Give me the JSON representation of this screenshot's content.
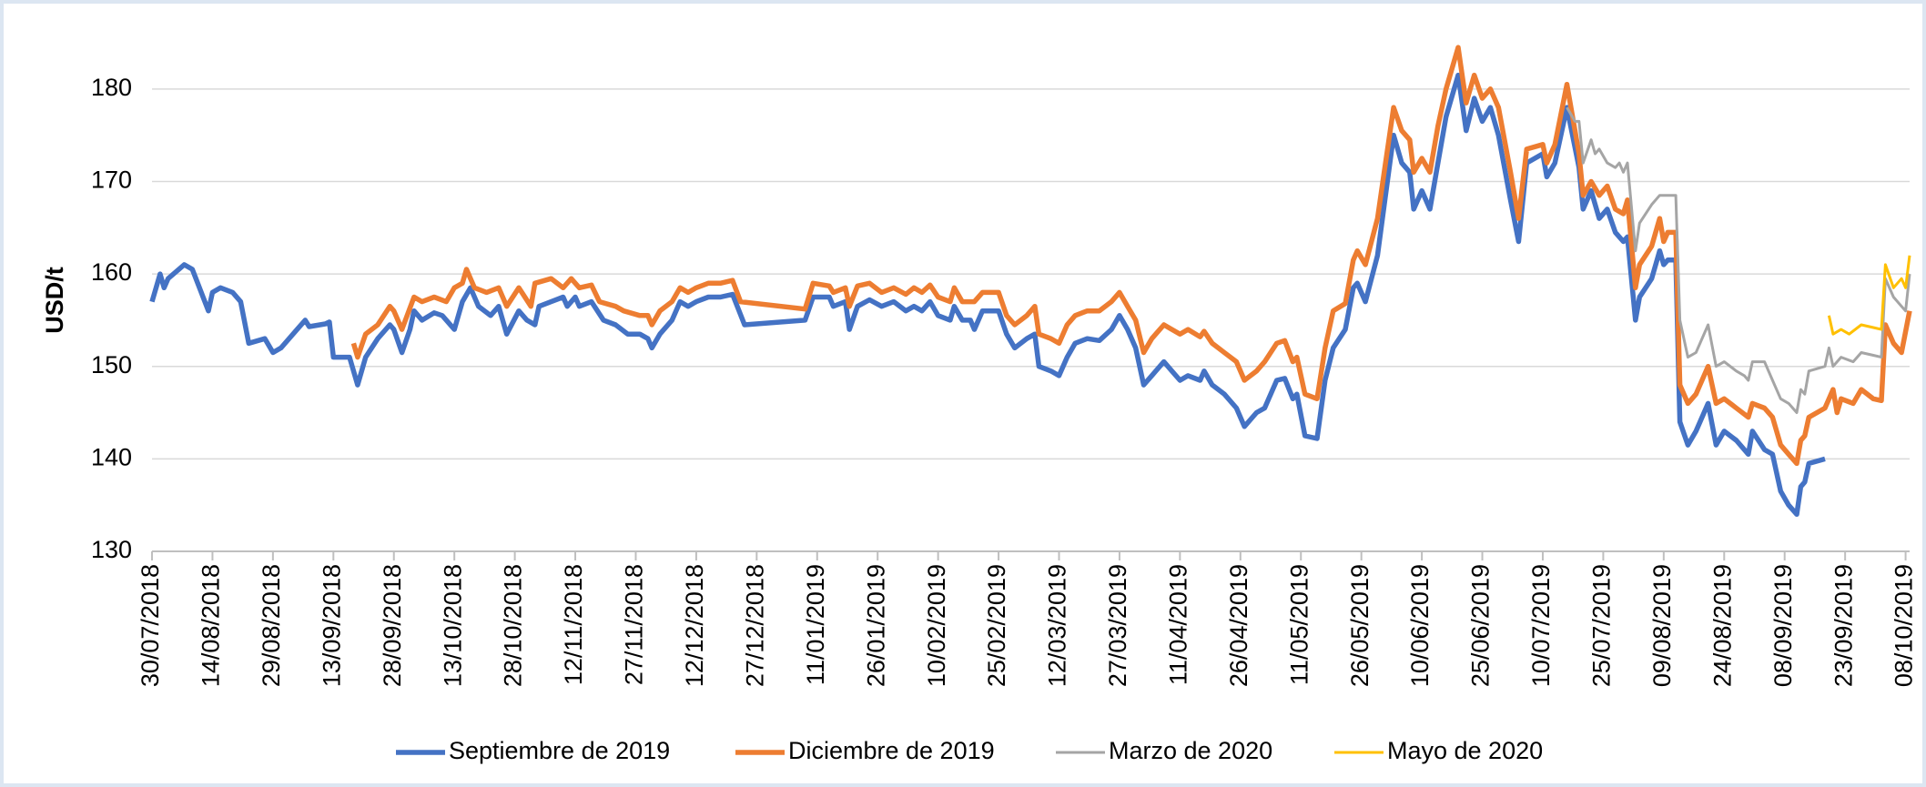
{
  "chart_data": {
    "type": "line",
    "y_label": "USD/t",
    "xlim": [
      "30/07/2018",
      "09/10/2019"
    ],
    "xticks": [
      "30/07/2018",
      "14/08/2018",
      "29/08/2018",
      "13/09/2018",
      "28/09/2018",
      "13/10/2018",
      "28/10/2018",
      "12/11/2018",
      "27/11/2018",
      "12/12/2018",
      "27/12/2018",
      "11/01/2019",
      "26/01/2019",
      "10/02/2019",
      "25/02/2019",
      "12/03/2019",
      "27/03/2019",
      "11/04/2019",
      "26/04/2019",
      "11/05/2019",
      "26/05/2019",
      "10/06/2019",
      "25/06/2019",
      "10/07/2019",
      "25/07/2019",
      "09/08/2019",
      "24/08/2019",
      "08/09/2019",
      "23/09/2019",
      "08/10/2019"
    ],
    "ylim": [
      130,
      185
    ],
    "yticks": [
      130,
      140,
      150,
      160,
      170,
      180
    ],
    "grid": true,
    "legend": "bottom",
    "series": [
      {
        "name": "Septiembre de 2019",
        "color": "#4472c4",
        "width": "thick",
        "x": [
          "30/07/2018",
          "01/08/2018",
          "02/08/2018",
          "03/08/2018",
          "07/08/2018",
          "09/08/2018",
          "13/08/2018",
          "14/08/2018",
          "16/08/2018",
          "19/08/2018",
          "21/08/2018",
          "23/08/2018",
          "27/08/2018",
          "29/08/2018",
          "31/08/2018",
          "04/09/2018",
          "06/09/2018",
          "07/09/2018",
          "11/09/2018",
          "12/09/2018",
          "13/09/2018",
          "17/09/2018",
          "19/09/2018",
          "21/09/2018",
          "24/09/2018",
          "27/09/2018",
          "28/09/2018",
          "30/09/2018",
          "02/10/2018",
          "03/10/2018",
          "05/10/2018",
          "08/10/2018",
          "10/10/2018",
          "13/10/2018",
          "15/10/2018",
          "17/10/2018",
          "19/10/2018",
          "22/10/2018",
          "24/10/2018",
          "26/10/2018",
          "29/10/2018",
          "31/10/2018",
          "02/11/2018",
          "03/11/2018",
          "06/11/2018",
          "09/11/2018",
          "10/11/2018",
          "12/11/2018",
          "13/11/2018",
          "16/11/2018",
          "19/11/2018",
          "22/11/2018",
          "25/11/2018",
          "28/11/2018",
          "30/11/2018",
          "01/12/2018",
          "03/12/2018",
          "06/12/2018",
          "08/12/2018",
          "10/12/2018",
          "12/12/2018",
          "15/12/2018",
          "18/12/2018",
          "21/12/2018",
          "24/12/2018",
          "08/01/2019",
          "10/01/2019",
          "14/01/2019",
          "15/01/2019",
          "18/01/2019",
          "19/01/2019",
          "21/01/2019",
          "24/01/2019",
          "27/01/2019",
          "30/01/2019",
          "02/02/2019",
          "04/02/2019",
          "06/02/2019",
          "08/02/2019",
          "10/02/2019",
          "13/02/2019",
          "14/02/2019",
          "16/02/2019",
          "18/02/2019",
          "19/02/2019",
          "21/02/2019",
          "25/02/2019",
          "27/02/2019",
          "01/03/2019",
          "04/03/2019",
          "06/03/2019",
          "07/03/2019",
          "10/03/2019",
          "12/03/2019",
          "14/03/2019",
          "16/03/2019",
          "19/03/2019",
          "22/03/2019",
          "25/03/2019",
          "27/03/2019",
          "29/03/2019",
          "31/03/2019",
          "02/04/2019",
          "04/04/2019",
          "07/04/2019",
          "09/04/2019",
          "11/04/2019",
          "13/04/2019",
          "16/04/2019",
          "17/04/2019",
          "19/04/2019",
          "22/04/2019",
          "25/04/2019",
          "27/04/2019",
          "30/04/2019",
          "02/05/2019",
          "05/05/2019",
          "07/05/2019",
          "09/05/2019",
          "10/05/2019",
          "12/05/2019",
          "15/05/2019",
          "17/05/2019",
          "19/05/2019",
          "22/05/2019",
          "24/05/2019",
          "25/05/2019",
          "27/05/2019",
          "30/05/2019",
          "01/06/2019",
          "03/06/2019",
          "05/06/2019",
          "07/06/2019",
          "08/06/2019",
          "10/06/2019",
          "12/06/2019",
          "14/06/2019",
          "16/06/2019",
          "19/06/2019",
          "21/06/2019",
          "23/06/2019",
          "25/06/2019",
          "27/06/2019",
          "29/06/2019",
          "02/07/2019",
          "04/07/2019",
          "06/07/2019",
          "10/07/2019",
          "11/07/2019",
          "13/07/2019",
          "16/07/2019",
          "19/07/2019",
          "20/07/2019",
          "22/07/2019",
          "24/07/2019",
          "26/07/2019",
          "28/07/2019",
          "30/07/2019",
          "31/07/2019",
          "02/08/2019",
          "03/08/2019",
          "06/08/2019",
          "08/08/2019",
          "09/08/2019",
          "10/08/2019",
          "12/08/2019",
          "13/08/2019",
          "15/08/2019",
          "17/08/2019",
          "20/08/2019",
          "22/08/2019",
          "24/08/2019",
          "27/08/2019",
          "30/08/2019",
          "31/08/2019",
          "03/09/2019",
          "05/09/2019",
          "07/09/2019",
          "09/09/2019",
          "11/09/2019",
          "12/09/2019",
          "13/09/2019",
          "14/09/2019",
          "18/09/2019"
        ],
        "values": [
          157,
          160,
          158.5,
          159.5,
          161,
          160.5,
          156,
          158,
          158.5,
          158,
          157,
          152.5,
          153,
          151.5,
          152,
          154,
          155,
          154.3,
          154.6,
          154.8,
          151,
          151,
          148,
          151,
          153,
          154.5,
          154,
          151.5,
          154,
          156,
          155,
          155.8,
          155.5,
          154,
          157,
          158.5,
          156.5,
          155.5,
          156.5,
          153.5,
          156,
          155,
          154.5,
          156.5,
          157,
          157.5,
          156.5,
          157.5,
          156.5,
          157,
          155,
          154.5,
          153.5,
          153.5,
          153,
          152,
          153.5,
          155,
          157,
          156.5,
          157,
          157.5,
          157.5,
          157.8,
          154.5,
          155,
          157.5,
          157.5,
          156.5,
          157,
          154,
          156.5,
          157.2,
          156.5,
          157,
          156,
          156.5,
          156,
          157,
          155.5,
          155,
          156.5,
          155,
          155,
          154,
          156,
          156,
          153.5,
          152,
          153,
          153.5,
          150,
          149.5,
          149,
          151,
          152.5,
          153,
          152.8,
          154,
          155.5,
          154,
          152,
          148,
          149,
          150.5,
          149.5,
          148.5,
          149,
          148.5,
          149.5,
          148,
          147,
          145.5,
          143.5,
          145,
          145.5,
          148.5,
          148.7,
          146.5,
          147,
          142.5,
          142.2,
          148.5,
          152,
          154,
          158.5,
          159,
          157,
          162,
          168.5,
          175,
          172,
          171,
          167,
          169,
          167,
          172,
          177,
          181.5,
          175.5,
          179,
          176.5,
          178,
          175,
          168,
          163.5,
          172,
          173,
          170.5,
          172,
          178,
          171.5,
          167,
          169,
          166,
          167,
          164.5,
          163.5,
          164,
          155,
          157.5,
          159.5,
          162.5,
          161,
          161.5,
          161.5,
          144,
          141.5,
          143,
          146,
          141.5,
          143,
          142,
          140.5,
          143,
          141,
          140.5,
          136.5,
          135,
          134,
          137,
          137.5,
          139.5,
          140
        ]
      },
      {
        "name": "Diciembre de 2019",
        "color": "#ed7d31",
        "width": "thick",
        "x": [
          "18/09/2018",
          "19/09/2018",
          "21/09/2018",
          "24/09/2018",
          "27/09/2018",
          "28/09/2018",
          "30/09/2018",
          "03/10/2018",
          "05/10/2018",
          "08/10/2018",
          "11/10/2018",
          "13/10/2018",
          "15/10/2018",
          "16/10/2018",
          "18/10/2018",
          "21/10/2018",
          "24/10/2018",
          "26/10/2018",
          "29/10/2018",
          "01/11/2018",
          "02/11/2018",
          "06/11/2018",
          "09/11/2018",
          "11/11/2018",
          "13/11/2018",
          "16/11/2018",
          "18/11/2018",
          "22/11/2018",
          "24/11/2018",
          "28/11/2018",
          "30/11/2018",
          "01/12/2018",
          "03/12/2018",
          "06/12/2018",
          "08/12/2018",
          "10/12/2018",
          "12/12/2018",
          "15/12/2018",
          "18/12/2018",
          "21/12/2018",
          "23/12/2018",
          "08/01/2019",
          "10/01/2019",
          "14/01/2019",
          "15/01/2019",
          "18/01/2019",
          "19/01/2019",
          "21/01/2019",
          "24/01/2019",
          "27/01/2019",
          "30/01/2019",
          "02/02/2019",
          "04/02/2019",
          "06/02/2019",
          "08/02/2019",
          "10/02/2019",
          "13/02/2019",
          "14/02/2019",
          "16/02/2019",
          "19/02/2019",
          "21/02/2019",
          "25/02/2019",
          "27/02/2019",
          "01/03/2019",
          "04/03/2019",
          "06/03/2019",
          "07/03/2019",
          "10/03/2019",
          "12/03/2019",
          "14/03/2019",
          "16/03/2019",
          "19/03/2019",
          "22/03/2019",
          "25/03/2019",
          "27/03/2019",
          "29/03/2019",
          "31/03/2019",
          "02/04/2019",
          "04/04/2019",
          "07/04/2019",
          "09/04/2019",
          "11/04/2019",
          "13/04/2019",
          "16/04/2019",
          "17/04/2019",
          "19/04/2019",
          "22/04/2019",
          "25/04/2019",
          "27/04/2019",
          "30/04/2019",
          "02/05/2019",
          "05/05/2019",
          "07/05/2019",
          "09/05/2019",
          "10/05/2019",
          "12/05/2019",
          "15/05/2019",
          "17/05/2019",
          "19/05/2019",
          "22/05/2019",
          "24/05/2019",
          "25/05/2019",
          "27/05/2019",
          "30/05/2019",
          "01/06/2019",
          "03/06/2019",
          "05/06/2019",
          "07/06/2019",
          "08/06/2019",
          "10/06/2019",
          "12/06/2019",
          "14/06/2019",
          "16/06/2019",
          "19/06/2019",
          "21/06/2019",
          "23/06/2019",
          "25/06/2019",
          "27/06/2019",
          "29/06/2019",
          "02/07/2019",
          "04/07/2019",
          "06/07/2019",
          "10/07/2019",
          "11/07/2019",
          "13/07/2019",
          "16/07/2019",
          "19/07/2019",
          "20/07/2019",
          "22/07/2019",
          "24/07/2019",
          "26/07/2019",
          "28/07/2019",
          "30/07/2019",
          "31/07/2019",
          "02/08/2019",
          "03/08/2019",
          "06/08/2019",
          "08/08/2019",
          "09/08/2019",
          "10/08/2019",
          "12/08/2019",
          "13/08/2019",
          "15/08/2019",
          "17/08/2019",
          "20/08/2019",
          "22/08/2019",
          "24/08/2019",
          "27/08/2019",
          "30/08/2019",
          "31/08/2019",
          "03/09/2019",
          "05/09/2019",
          "07/09/2019",
          "09/09/2019",
          "11/09/2019",
          "12/09/2019",
          "13/09/2019",
          "14/09/2019",
          "18/09/2019",
          "20/09/2019",
          "21/09/2019",
          "22/09/2019",
          "25/09/2019",
          "27/09/2019",
          "30/09/2019",
          "02/10/2019",
          "03/10/2019",
          "05/10/2019",
          "07/10/2019",
          "09/10/2019"
        ],
        "values": [
          152.5,
          151,
          153.5,
          154.5,
          156.5,
          156,
          154,
          157.5,
          157,
          157.5,
          157,
          158.5,
          159,
          160.5,
          158.5,
          158,
          158.5,
          156.5,
          158.5,
          156.5,
          159,
          159.5,
          158.5,
          159.5,
          158.5,
          158.8,
          157,
          156.5,
          156,
          155.5,
          155.5,
          154.5,
          156,
          157,
          158.5,
          158,
          158.5,
          159,
          159,
          159.3,
          157,
          156.2,
          159,
          158.7,
          158,
          158.5,
          156.5,
          158.7,
          159,
          158,
          158.5,
          157.8,
          158.5,
          158,
          158.8,
          157.5,
          157,
          158.5,
          157,
          157,
          158,
          158,
          155.5,
          154.5,
          155.5,
          156.5,
          153.5,
          153,
          152.5,
          154.5,
          155.5,
          156,
          156,
          157,
          158,
          156.5,
          155,
          151.5,
          153,
          154.5,
          154,
          153.5,
          154,
          153.2,
          153.8,
          152.5,
          151.5,
          150.5,
          148.5,
          149.5,
          150.5,
          152.5,
          152.8,
          150.5,
          151,
          147,
          146.5,
          152,
          156,
          156.8,
          161.5,
          162.5,
          161,
          166,
          172,
          178,
          175.5,
          174.5,
          171,
          172.5,
          171,
          176,
          180,
          184.5,
          178.5,
          181.5,
          179,
          180,
          178,
          171,
          166,
          173.5,
          174,
          172,
          174,
          180.5,
          173,
          168.5,
          170,
          168.5,
          169.5,
          167,
          166.5,
          168,
          158.5,
          161,
          163,
          166,
          163.5,
          164.5,
          164.5,
          148,
          146,
          147,
          150,
          146,
          146.5,
          145.5,
          144.5,
          146,
          145.5,
          144.5,
          141.5,
          140.5,
          139.5,
          142,
          142.5,
          144.5,
          145.5,
          147.5,
          145,
          146.5,
          146,
          147.5,
          146.5,
          146.3,
          154.5,
          152.5,
          151.5,
          156
        ]
      },
      {
        "name": "Marzo de 2020",
        "color": "#a5a5a5",
        "width": "thin",
        "x": [
          "16/07/2019",
          "18/07/2019",
          "19/07/2019",
          "20/07/2019",
          "22/07/2019",
          "23/07/2019",
          "24/07/2019",
          "26/07/2019",
          "28/07/2019",
          "29/07/2019",
          "30/07/2019",
          "31/07/2019",
          "02/08/2019",
          "03/08/2019",
          "06/08/2019",
          "08/08/2019",
          "09/08/2019",
          "12/08/2019",
          "13/08/2019",
          "15/08/2019",
          "17/08/2019",
          "20/08/2019",
          "22/08/2019",
          "24/08/2019",
          "27/08/2019",
          "29/08/2019",
          "30/08/2019",
          "31/08/2019",
          "03/09/2019",
          "05/09/2019",
          "07/09/2019",
          "09/09/2019",
          "11/09/2019",
          "12/09/2019",
          "13/09/2019",
          "14/09/2019",
          "18/09/2019",
          "19/09/2019",
          "20/09/2019",
          "22/09/2019",
          "25/09/2019",
          "27/09/2019",
          "30/09/2019",
          "02/10/2019",
          "03/10/2019",
          "05/10/2019",
          "07/10/2019",
          "08/10/2019",
          "09/10/2019"
        ],
        "values": [
          178,
          176.5,
          176.5,
          172,
          174.5,
          173,
          173.5,
          172,
          171.5,
          172,
          171,
          172,
          162.5,
          165.5,
          167.5,
          168.5,
          168.5,
          168.5,
          155,
          151,
          151.5,
          154.5,
          150,
          150.5,
          149.5,
          149,
          148.5,
          150.5,
          150.5,
          148.5,
          146.5,
          146,
          145,
          147.5,
          147,
          149.5,
          150,
          152,
          150,
          151,
          150.5,
          151.5,
          151.2,
          151,
          159.5,
          157.5,
          156.5,
          156,
          160
        ]
      },
      {
        "name": "Mayo de 2020",
        "color": "#ffc000",
        "width": "thin",
        "x": [
          "19/09/2019",
          "20/09/2019",
          "22/09/2019",
          "24/09/2019",
          "27/09/2019",
          "30/09/2019",
          "02/10/2019",
          "03/10/2019",
          "05/10/2019",
          "07/10/2019",
          "08/10/2019",
          "09/10/2019"
        ],
        "values": [
          155.5,
          153.5,
          154,
          153.5,
          154.5,
          154.2,
          154,
          161,
          158.5,
          159.5,
          158.5,
          162
        ]
      }
    ]
  }
}
